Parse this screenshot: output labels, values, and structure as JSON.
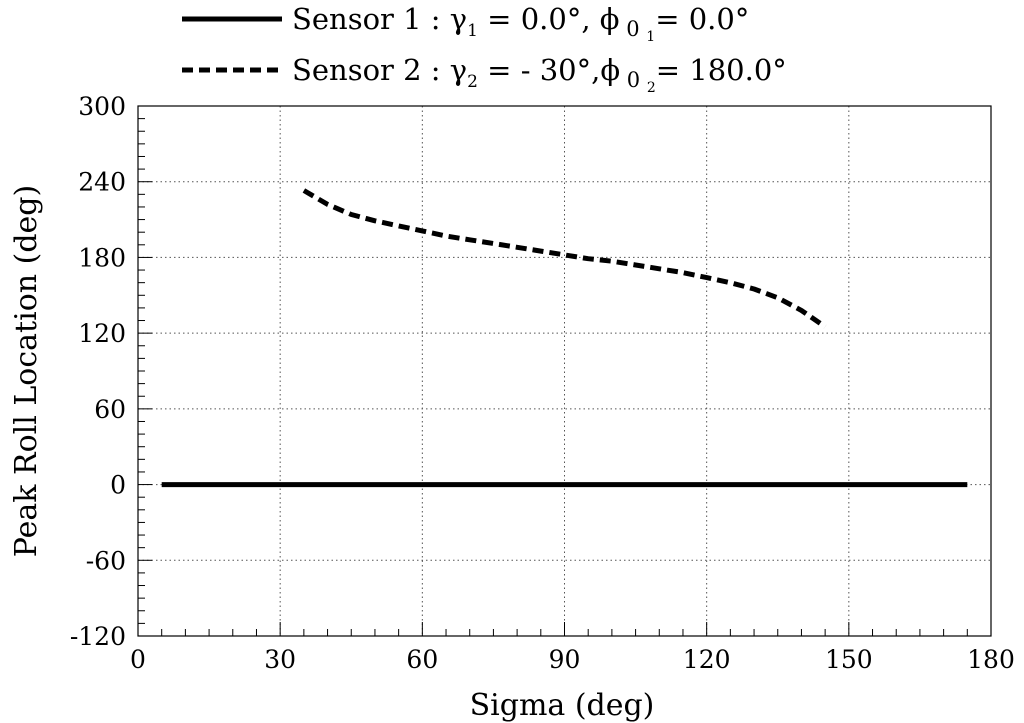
{
  "chart_data": {
    "type": "line",
    "xlabel": "Sigma (deg)",
    "ylabel": "Peak Roll Location (deg)",
    "xlim": [
      0,
      180
    ],
    "ylim": [
      -120,
      300
    ],
    "x_ticks": [
      "0",
      "30",
      "60",
      "90",
      "120",
      "150",
      "180"
    ],
    "y_ticks": [
      "300",
      "240",
      "180",
      "120",
      "60",
      "0",
      "-60",
      "-120"
    ],
    "grid": true,
    "legend_position": "top",
    "series": [
      {
        "name": "Sensor 1 : γ1 = 0.0°, ϕ 0 1= 0.0°",
        "style": "solid",
        "x": [
          5,
          30,
          60,
          90,
          120,
          150,
          175
        ],
        "y": [
          0,
          0,
          0,
          0,
          0,
          0,
          0
        ]
      },
      {
        "name": "Sensor 2 : γ2 = - 30°,ϕ 0 2= 180.0°",
        "style": "dashed",
        "x": [
          35,
          40,
          45,
          50,
          55,
          60,
          65,
          70,
          75,
          80,
          85,
          90,
          95,
          100,
          105,
          110,
          115,
          120,
          125,
          130,
          135,
          140,
          145
        ],
        "y": [
          233,
          222,
          214,
          209,
          205,
          201,
          197,
          194,
          191,
          188,
          185,
          182,
          179,
          177,
          174,
          171,
          168,
          164,
          160,
          155,
          148,
          138,
          125
        ]
      }
    ],
    "legend_items": [
      {
        "prefix": "Sensor 1 : ",
        "gamma": "γ",
        "gamma_sub": "1",
        "mid": " = 0.0°, ",
        "phi": "ϕ",
        "phi_sub": " 0 ",
        "phi_subsub": "1",
        "end": "= 0.0°"
      },
      {
        "prefix": "Sensor 2 : ",
        "gamma": "γ",
        "gamma_sub": "2",
        "mid": " = - 30°,",
        "phi": "ϕ",
        "phi_sub": " 0 ",
        "phi_subsub": "2",
        "end": "= 180.0°"
      }
    ],
    "colors": {
      "line": "#000000",
      "grid": "#555555"
    }
  }
}
